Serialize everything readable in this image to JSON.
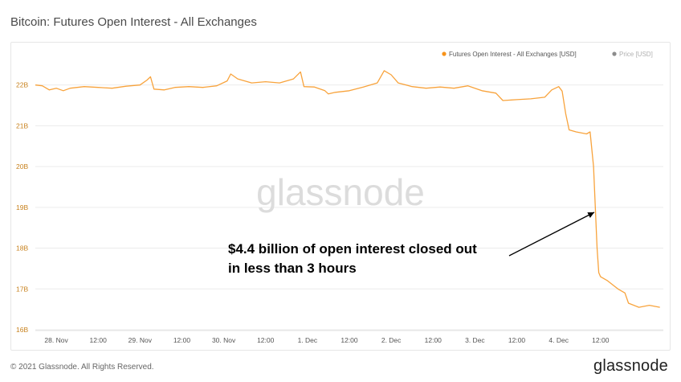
{
  "page_title": "Bitcoin: Futures Open Interest - All Exchanges",
  "footer": {
    "copyright": "© 2021 Glassnode. All Rights Reserved.",
    "logo": "glassnode"
  },
  "colors": {
    "series": "#f7931a",
    "price": "#8c8c8c"
  },
  "chart_data": {
    "type": "line",
    "title": "Bitcoin: Futures Open Interest - All Exchanges",
    "watermark": "glassnode",
    "legend": [
      {
        "name": "Futures Open Interest - All Exchanges [USD]",
        "active": true
      },
      {
        "name": "Price [USD]",
        "active": false
      }
    ],
    "legend_placement": "top-right",
    "yticks": [
      "16B",
      "17B",
      "18B",
      "19B",
      "20B",
      "21B",
      "22B"
    ],
    "ylim": [
      15.98,
      22.25
    ],
    "xticks": [
      "28. Nov",
      "12:00",
      "29. Nov",
      "12:00",
      "30. Nov",
      "12:00",
      "1. Dec",
      "12:00",
      "2. Dec",
      "12:00",
      "3. Dec",
      "12:00",
      "4. Dec",
      "12:00"
    ],
    "xlim": [
      "2021-11-27T18:00",
      "2021-12-05T06:00"
    ],
    "grid": "horizontal",
    "annotation": {
      "lines": [
        "$4.4 billion of open interest closed out",
        "in less than 3 hours"
      ]
    },
    "series": [
      {
        "name": "Futures Open Interest - All Exchanges [USD]",
        "unit": "B",
        "points": [
          [
            "2021-11-27T18:00",
            22.0
          ],
          [
            "2021-11-27T20:00",
            21.98
          ],
          [
            "2021-11-27T22:00",
            21.88
          ],
          [
            "2021-11-28T00:00",
            21.92
          ],
          [
            "2021-11-28T02:00",
            21.86
          ],
          [
            "2021-11-28T04:00",
            21.92
          ],
          [
            "2021-11-28T08:00",
            21.96
          ],
          [
            "2021-11-28T12:00",
            21.94
          ],
          [
            "2021-11-28T16:00",
            21.92
          ],
          [
            "2021-11-28T20:00",
            21.97
          ],
          [
            "2021-11-29T00:00",
            22.0
          ],
          [
            "2021-11-29T02:00",
            22.12
          ],
          [
            "2021-11-29T03:00",
            22.2
          ],
          [
            "2021-11-29T04:00",
            21.9
          ],
          [
            "2021-11-29T07:00",
            21.88
          ],
          [
            "2021-11-29T10:00",
            21.94
          ],
          [
            "2021-11-29T14:00",
            21.96
          ],
          [
            "2021-11-29T18:00",
            21.94
          ],
          [
            "2021-11-29T22:00",
            21.98
          ],
          [
            "2021-11-30T01:00",
            22.1
          ],
          [
            "2021-11-30T02:00",
            22.27
          ],
          [
            "2021-11-30T04:00",
            22.15
          ],
          [
            "2021-11-30T08:00",
            22.05
          ],
          [
            "2021-11-30T12:00",
            22.08
          ],
          [
            "2021-11-30T16:00",
            22.05
          ],
          [
            "2021-11-30T20:00",
            22.15
          ],
          [
            "2021-11-30T22:00",
            22.32
          ],
          [
            "2021-11-30T23:00",
            21.96
          ],
          [
            "2021-12-01T02:00",
            21.95
          ],
          [
            "2021-12-01T05:00",
            21.86
          ],
          [
            "2021-12-01T06:00",
            21.78
          ],
          [
            "2021-12-01T08:00",
            21.82
          ],
          [
            "2021-12-01T12:00",
            21.86
          ],
          [
            "2021-12-01T16:00",
            21.95
          ],
          [
            "2021-12-01T20:00",
            22.05
          ],
          [
            "2021-12-01T22:00",
            22.35
          ],
          [
            "2021-12-02T00:00",
            22.25
          ],
          [
            "2021-12-02T02:00",
            22.05
          ],
          [
            "2021-12-02T06:00",
            21.96
          ],
          [
            "2021-12-02T10:00",
            21.92
          ],
          [
            "2021-12-02T14:00",
            21.95
          ],
          [
            "2021-12-02T18:00",
            21.92
          ],
          [
            "2021-12-02T22:00",
            21.98
          ],
          [
            "2021-12-03T02:00",
            21.86
          ],
          [
            "2021-12-03T06:00",
            21.8
          ],
          [
            "2021-12-03T08:00",
            21.62
          ],
          [
            "2021-12-03T12:00",
            21.64
          ],
          [
            "2021-12-03T16:00",
            21.66
          ],
          [
            "2021-12-03T20:00",
            21.7
          ],
          [
            "2021-12-03T22:00",
            21.88
          ],
          [
            "2021-12-04T00:00",
            21.96
          ],
          [
            "2021-12-04T01:00",
            21.85
          ],
          [
            "2021-12-04T02:00",
            21.3
          ],
          [
            "2021-12-04T03:00",
            20.9
          ],
          [
            "2021-12-04T05:00",
            20.85
          ],
          [
            "2021-12-04T08:00",
            20.8
          ],
          [
            "2021-12-04T09:00",
            20.85
          ],
          [
            "2021-12-04T10:00",
            20.0
          ],
          [
            "2021-12-04T11:00",
            18.0
          ],
          [
            "2021-12-04T11:30",
            17.4
          ],
          [
            "2021-12-04T12:00",
            17.3
          ],
          [
            "2021-12-04T14:00",
            17.2
          ],
          [
            "2021-12-04T17:00",
            17.0
          ],
          [
            "2021-12-04T19:00",
            16.9
          ],
          [
            "2021-12-04T20:00",
            16.65
          ],
          [
            "2021-12-04T23:00",
            16.55
          ],
          [
            "2021-12-05T02:00",
            16.6
          ],
          [
            "2021-12-05T05:00",
            16.55
          ]
        ]
      }
    ]
  }
}
